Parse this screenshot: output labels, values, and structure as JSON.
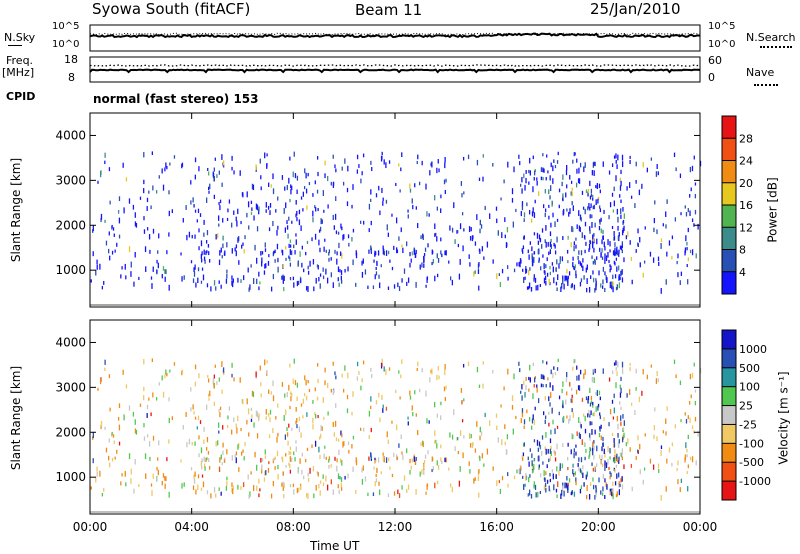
{
  "header": {
    "station": "Syowa South (fitACF)",
    "beam": "Beam 11",
    "date": "25/Jan/2010"
  },
  "strip": {
    "nsky_label": "N.Sky",
    "nsearch_label": "N.Search",
    "freq_label": "Freq.",
    "mhz_label": "[MHz]",
    "nave_label": "Nave",
    "cpid_label": "CPID",
    "cpid_text": "normal (fast stereo) 153",
    "noise_ticks": [
      "10^5",
      "10^0"
    ],
    "freq_ticks": [
      "18",
      "8"
    ],
    "nave_ticks": [
      "60",
      "0"
    ]
  },
  "axes": {
    "xlabel": "Time UT",
    "ylabel": "Slant Range [km]",
    "power_label": "Power [dB]",
    "velocity_label": "Velocity [m s⁻¹]"
  },
  "colors": {
    "power": [
      "#1414ff",
      "#2850b4",
      "#3c8c8c",
      "#50b450",
      "#e6c81e",
      "#f08c14",
      "#f05014",
      "#e61414"
    ],
    "velocity": [
      "#e61414",
      "#f05014",
      "#f08c14",
      "#f0c864",
      "#c8c8c8",
      "#50c850",
      "#2896a0",
      "#2850b4",
      "#1414c8"
    ]
  },
  "chart_data": [
    {
      "type": "heatmap",
      "name": "power",
      "x_range": [
        0,
        24
      ],
      "y_range": [
        180,
        4500
      ],
      "x_ticks": [
        "00:00",
        "04:00",
        "08:00",
        "12:00",
        "16:00",
        "20:00",
        "00:00"
      ],
      "y_ticks": [
        "1000",
        "2000",
        "3000",
        "4000"
      ],
      "y_tick_values": [
        1000,
        2000,
        3000,
        4000
      ],
      "colorbar_ticks": [
        "4",
        "8",
        "12",
        "16",
        "20",
        "24",
        "28"
      ],
      "colorbar_range": [
        0,
        32
      ]
    },
    {
      "type": "heatmap",
      "name": "velocity",
      "x_range": [
        0,
        24
      ],
      "y_range": [
        180,
        4500
      ],
      "x_ticks": [
        "00:00",
        "04:00",
        "08:00",
        "12:00",
        "16:00",
        "20:00",
        "00:00"
      ],
      "y_ticks": [
        "1000",
        "2000",
        "3000",
        "4000"
      ],
      "y_tick_values": [
        1000,
        2000,
        3000,
        4000
      ],
      "colorbar_ticks": [
        "1000",
        "500",
        "100",
        "25",
        "-25",
        "-100",
        "-500",
        "-1000"
      ]
    }
  ]
}
